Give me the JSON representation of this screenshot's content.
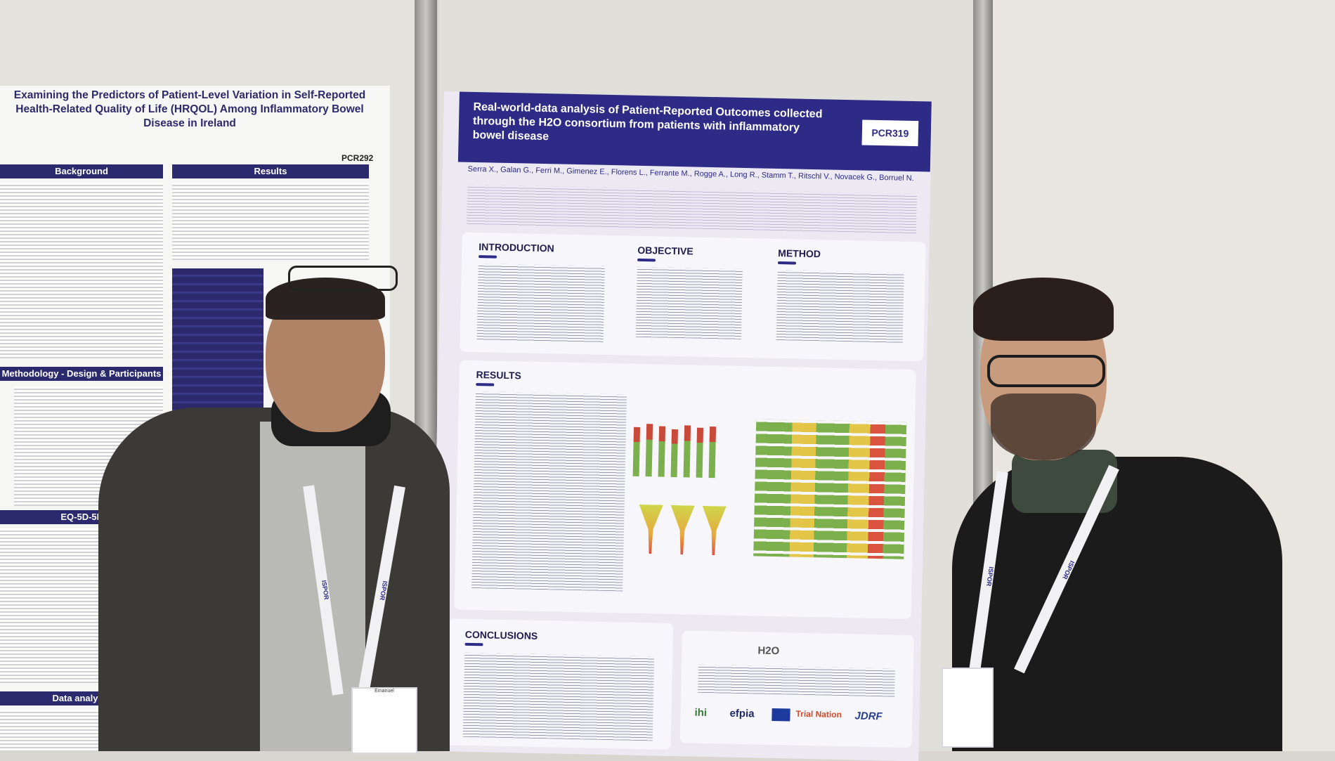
{
  "left_poster": {
    "title": "Examining the Predictors of Patient-Level Variation in Self-Reported Health-Related Quality of Life (HRQOL) Among Inflammatory Bowel Disease in Ireland",
    "code": "PCR292",
    "sections": [
      "Background",
      "Results",
      "Methodology - Design & Participants",
      "EQ-5D-5L",
      "Data analysis"
    ]
  },
  "right_poster": {
    "title": "Real-world-data analysis of Patient-Reported Outcomes collected through the H2O consortium from patients with inflammatory bowel disease",
    "code": "PCR319",
    "authors": "Serra X., Galan G., Ferri M., Gimenez E., Florens L., Ferrante M., Rogge A., Long R., Stamm T., Ritschl V., Novacek G., Borruel N.",
    "sections": {
      "introduction": "INTRODUCTION",
      "objective": "OBJECTIVE",
      "method": "METHOD",
      "results": "RESULTS",
      "conclusions": "CONCLUSIONS"
    },
    "logos": [
      "H2O",
      "ihi",
      "efpia",
      "Trial Nation",
      "JDRF"
    ]
  },
  "badge": {
    "name": "Emanuel"
  },
  "lanyard_text": "ISPOR"
}
